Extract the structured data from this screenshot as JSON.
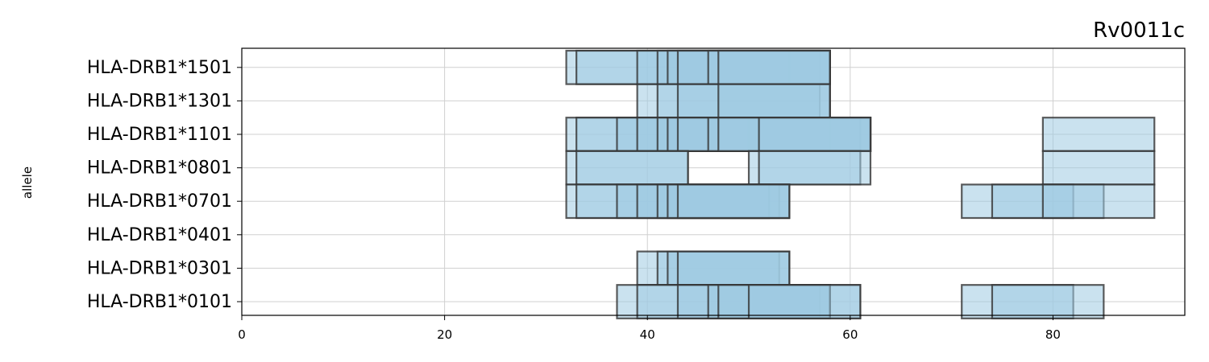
{
  "chart_data": {
    "type": "bar",
    "title": "Rv0011c",
    "xlabel": "",
    "ylabel": "allele",
    "xlim": [
      0,
      93
    ],
    "x_ticks": [
      0,
      20,
      40,
      60,
      80
    ],
    "grid": true,
    "bar_color": "#9ecae1",
    "edge_color": "#333333",
    "categories": [
      "HLA-DRB1*0101",
      "HLA-DRB1*0301",
      "HLA-DRB1*0401",
      "HLA-DRB1*0701",
      "HLA-DRB1*0801",
      "HLA-DRB1*1101",
      "HLA-DRB1*1301",
      "HLA-DRB1*1501"
    ],
    "peptides": [
      {
        "allele": "HLA-DRB1*1501",
        "ranges": [
          [
            32,
            54
          ],
          [
            33,
            57
          ],
          [
            39,
            58
          ],
          [
            41,
            58
          ],
          [
            42,
            58
          ],
          [
            43,
            58
          ],
          [
            46,
            58
          ],
          [
            47,
            58
          ]
        ]
      },
      {
        "allele": "HLA-DRB1*1301",
        "ranges": [
          [
            39,
            57
          ],
          [
            41,
            58
          ],
          [
            43,
            58
          ],
          [
            47,
            58
          ]
        ]
      },
      {
        "allele": "HLA-DRB1*1101",
        "ranges": [
          [
            32,
            50
          ],
          [
            33,
            50
          ],
          [
            37,
            58
          ],
          [
            39,
            61
          ],
          [
            41,
            61
          ],
          [
            42,
            62
          ],
          [
            43,
            62
          ],
          [
            46,
            62
          ],
          [
            47,
            62
          ],
          [
            51,
            62
          ],
          [
            79,
            90
          ]
        ]
      },
      {
        "allele": "HLA-DRB1*0801",
        "ranges": [
          [
            32,
            44
          ],
          [
            33,
            44
          ],
          [
            50,
            61
          ],
          [
            51,
            62
          ],
          [
            79,
            90
          ]
        ]
      },
      {
        "allele": "HLA-DRB1*0701",
        "ranges": [
          [
            32,
            52
          ],
          [
            33,
            52
          ],
          [
            37,
            53
          ],
          [
            39,
            54
          ],
          [
            41,
            54
          ],
          [
            42,
            54
          ],
          [
            43,
            54
          ],
          [
            71,
            82
          ],
          [
            74,
            85
          ],
          [
            79,
            90
          ]
        ]
      },
      {
        "allele": "HLA-DRB1*0401",
        "ranges": []
      },
      {
        "allele": "HLA-DRB1*0301",
        "ranges": [
          [
            39,
            53
          ],
          [
            41,
            54
          ],
          [
            42,
            54
          ],
          [
            43,
            54
          ]
        ]
      },
      {
        "allele": "HLA-DRB1*0101",
        "ranges": [
          [
            37,
            57
          ],
          [
            39,
            58
          ],
          [
            43,
            61
          ],
          [
            46,
            58
          ],
          [
            47,
            58
          ],
          [
            50,
            61
          ],
          [
            71,
            82
          ],
          [
            74,
            85
          ]
        ]
      }
    ]
  }
}
